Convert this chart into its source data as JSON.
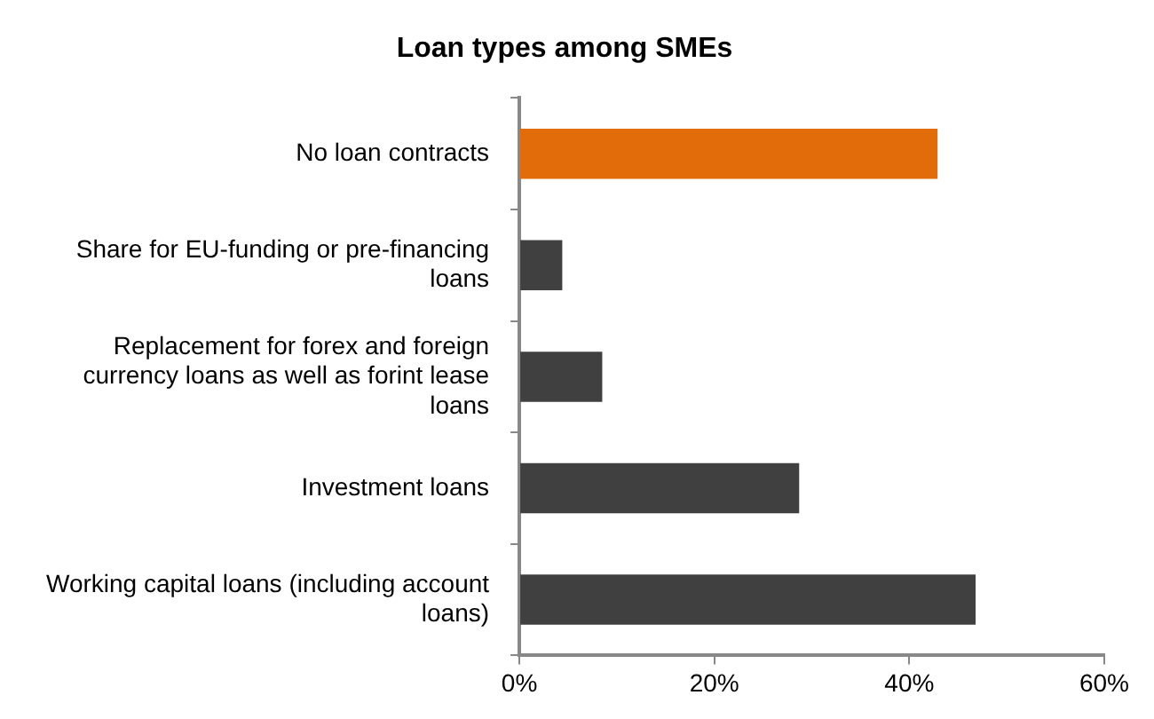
{
  "chart_data": {
    "type": "bar",
    "orientation": "horizontal",
    "title": "Loan types among SMEs",
    "categories": [
      "No loan contracts",
      "Share for EU-funding or pre-financing loans",
      "Replacement for forex and foreign currency loans as well as forint lease loans",
      "Investment loans",
      "Working capital loans (including account loans)"
    ],
    "values": [
      42.9,
      4.4,
      8.5,
      28.7,
      46.8
    ],
    "colors": [
      "#e36c0a",
      "#404040",
      "#404040",
      "#404040",
      "#404040"
    ],
    "xlim": [
      0,
      60
    ],
    "xticks": [
      {
        "value": 0,
        "label": "0%"
      },
      {
        "value": 20,
        "label": "20%"
      },
      {
        "value": 40,
        "label": "40%"
      },
      {
        "value": 60,
        "label": "60%"
      }
    ],
    "grid": false,
    "legend": false
  }
}
